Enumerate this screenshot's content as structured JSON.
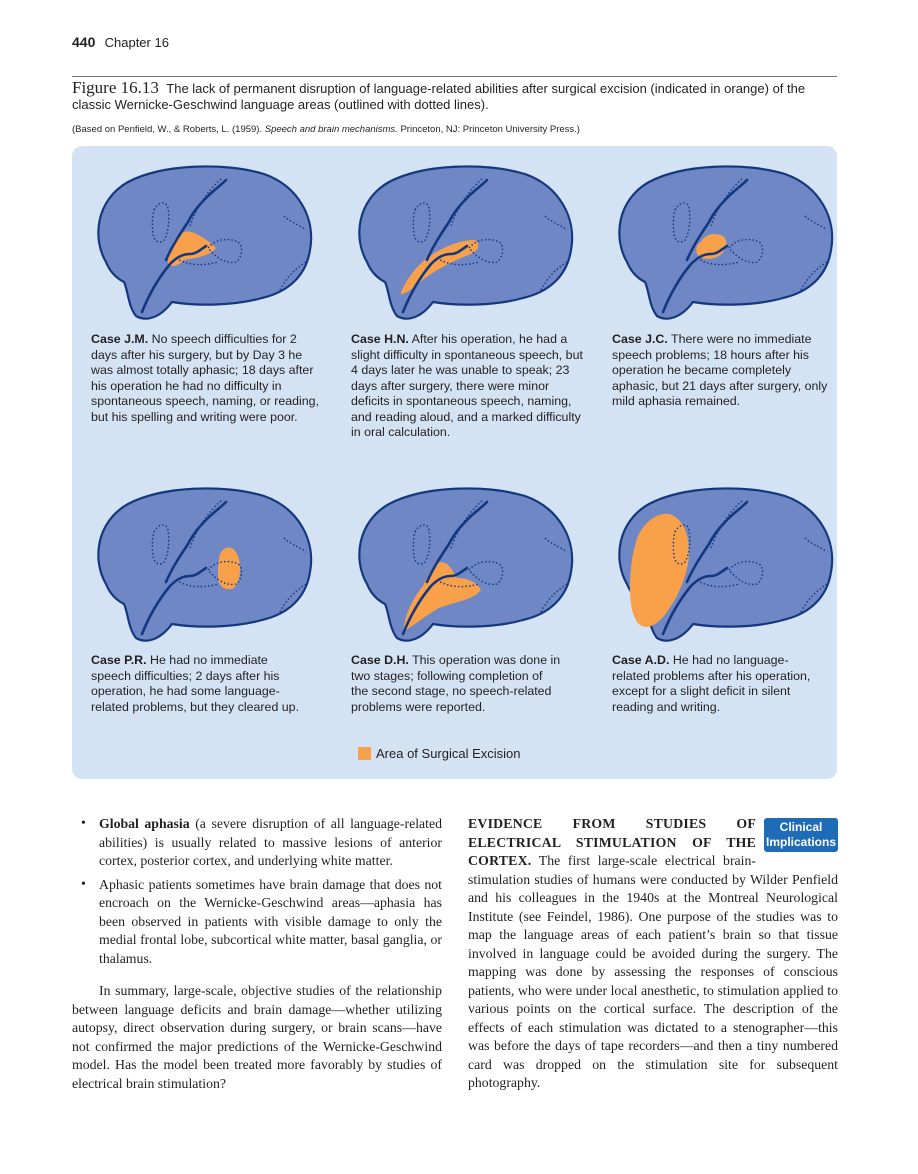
{
  "header": {
    "page_number": "440",
    "chapter": "Chapter 16"
  },
  "caption": {
    "label": "Figure 16.13",
    "text": "The lack of permanent disruption of language-related abilities after surgical excision (indicated in orange) of the classic Wernicke-Geschwind language areas (outlined with dotted lines).",
    "credit_prefix": "(Based on Penfield, W., & Roberts, L. (1959). ",
    "credit_title": "Speech and brain mechanisms.",
    "credit_suffix": " Princeton, NJ: Princeton University Press.)"
  },
  "colors": {
    "brain": "#6f87c4",
    "outline": "#14387f",
    "excision": "#f9a14a",
    "panel_bg": "#d4e3f3"
  },
  "cases": [
    {
      "name": "Case J.M.",
      "text": " No speech difficulties for 2 days after his surgery, but by Day 3 he was almost totally aphasic; 18 days after his operation he had no difficulty in spontaneous speech, naming, or reading, but his spelling and writing were poor."
    },
    {
      "name": "Case H.N.",
      "text": " After his operation, he had a slight difficulty in spontaneous speech, but 4 days later he was unable to speak; 23 days after surgery, there were minor deficits in spontaneous speech, naming, and reading aloud, and a marked difficulty in oral calculation."
    },
    {
      "name": "Case J.C.",
      "text": " There were no immediate speech problems; 18 hours after his operation he became completely aphasic, but 21 days after surgery, only mild aphasia remained."
    },
    {
      "name": "Case P.R.",
      "text": " He had no immediate speech difficulties; 2 days after his operation, he had some language-related problems, but they cleared up."
    },
    {
      "name": "Case D.H.",
      "text": " This operation was done in two stages; following completion of the second stage, no speech-related problems were reported."
    },
    {
      "name": "Case A.D.",
      "text": " He had no language-related problems after his operation, except for a slight deficit in silent reading and writing."
    }
  ],
  "legend": {
    "label": "Area of Surgical Excision"
  },
  "left_column": {
    "bullet1_term": "Global aphasia",
    "bullet1_text": " (a severe disruption of all language-related abilities) is usually related to massive lesions of anterior cortex, posterior cortex, and underlying white matter.",
    "bullet2_text": "Aphasic patients sometimes have brain damage that does not encroach on the Wernicke-Geschwind areas—aphasia has been observed in patients with visible damage to only the medial frontal lobe, subcortical white matter, basal ganglia, or thalamus.",
    "summary": "In summary, large-scale, objective studies of the relationship between language deficits and brain damage—whether utilizing autopsy, direct observation during surgery, or brain scans—have not confirmed the major predictions of the Wernicke-Geschwind model. Has the model been treated more favorably by studies of electrical brain stimulation?"
  },
  "right_column": {
    "heading": "EVIDENCE FROM STUDIES OF ELECTRICAL STIMULATION OF THE CORTEX.",
    "badge_line1": "Clinical",
    "badge_line2": "Implications",
    "text": " The first large-scale electrical brain-stimulation studies of humans were conducted by Wilder Penfield and his colleagues in the 1940s at the Montreal Neurological Institute (see Feindel, 1986). One purpose of the studies was to map the language areas of each patient’s brain so that tissue involved in language could be avoided during the surgery. The mapping was done by assessing the responses of conscious patients, who were under local anesthetic, to stimulation applied to various points on the cortical surface. The description of the effects of each stimulation was dictated to a stenographer—this was before the days of tape recorders—and then a tiny numbered card was dropped on the stimulation site for subsequent photography."
  }
}
